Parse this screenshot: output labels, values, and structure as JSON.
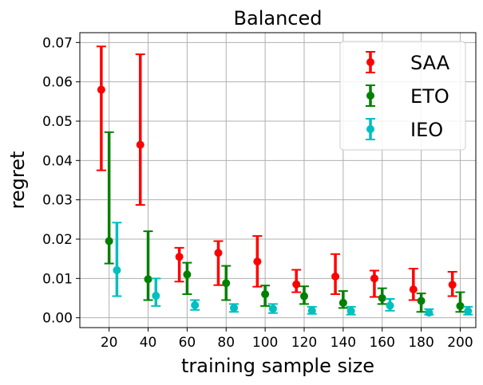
{
  "chart_data": {
    "type": "errorbar",
    "title": "Balanced",
    "xlabel": "training sample size",
    "ylabel": "regret",
    "xlim": [
      5,
      208
    ],
    "ylim": [
      -0.0025,
      0.0725
    ],
    "grid": true,
    "legend_position": "top-right",
    "x_ticks": [
      20,
      40,
      60,
      80,
      100,
      120,
      140,
      160,
      180,
      200
    ],
    "x_tick_labels": [
      "20",
      "40",
      "60",
      "80",
      "100",
      "120",
      "140",
      "160",
      "180",
      "200"
    ],
    "y_ticks": [
      0.0,
      0.01,
      0.02,
      0.03,
      0.04,
      0.05,
      0.06,
      0.07
    ],
    "y_tick_labels": [
      "0.00",
      "0.01",
      "0.02",
      "0.03",
      "0.04",
      "0.05",
      "0.06",
      "0.07"
    ],
    "categories": [
      20,
      40,
      60,
      80,
      100,
      120,
      140,
      160,
      180,
      200
    ],
    "series": [
      {
        "name": "SAA",
        "color": "#ff0000",
        "x_offset": -4,
        "values": [
          0.058,
          0.044,
          0.0155,
          0.0165,
          0.0143,
          0.0085,
          0.0105,
          0.01,
          0.0072,
          0.0084
        ],
        "lower": [
          0.0375,
          0.0287,
          0.0092,
          0.0083,
          0.0079,
          0.0065,
          0.006,
          0.0053,
          0.0045,
          0.0055
        ],
        "upper": [
          0.069,
          0.067,
          0.0178,
          0.0195,
          0.0208,
          0.0122,
          0.0162,
          0.012,
          0.0125,
          0.0117
        ]
      },
      {
        "name": "ETO",
        "color": "#008000",
        "x_offset": 0,
        "values": [
          0.0195,
          0.0098,
          0.011,
          0.0088,
          0.006,
          0.0055,
          0.0038,
          0.005,
          0.0043,
          0.003
        ],
        "lower": [
          0.0138,
          0.0045,
          0.006,
          0.0045,
          0.003,
          0.0035,
          0.0025,
          0.0035,
          0.0015,
          0.0015
        ],
        "upper": [
          0.0472,
          0.022,
          0.014,
          0.0132,
          0.0082,
          0.008,
          0.0068,
          0.0075,
          0.0062,
          0.0065
        ]
      },
      {
        "name": "IEO",
        "color": "#00bfbf",
        "x_offset": 4,
        "values": [
          0.0121,
          0.0056,
          0.0032,
          0.0025,
          0.0023,
          0.0018,
          0.0017,
          0.0031,
          0.0013,
          0.0017
        ],
        "lower": [
          0.0055,
          0.003,
          0.002,
          0.0015,
          0.0012,
          0.001,
          0.0008,
          0.0018,
          0.0008,
          0.0008
        ],
        "upper": [
          0.0242,
          0.01,
          0.0045,
          0.0035,
          0.0035,
          0.0028,
          0.0028,
          0.0048,
          0.0022,
          0.0028
        ]
      }
    ]
  }
}
